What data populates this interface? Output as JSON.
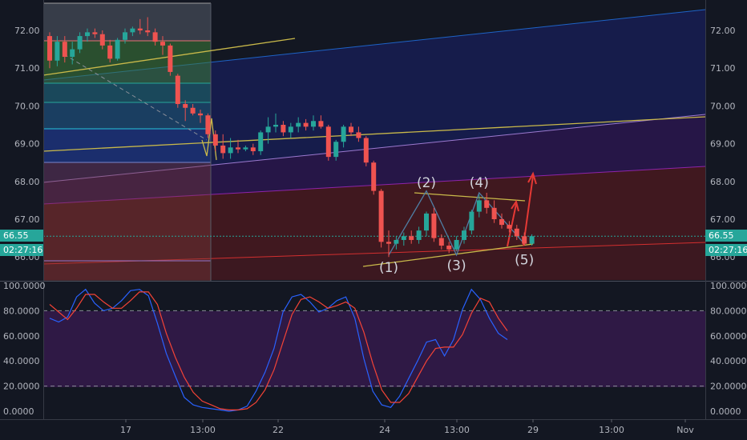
{
  "colors": {
    "background": "#131722",
    "up": "#26a69a",
    "down": "#ef5350",
    "stoch_k": "#2962ff",
    "stoch_d": "#f44336",
    "trendline": "#c9b94a",
    "fib_line": "#22b3a6",
    "projection_arrow": "#e53935",
    "price_tag": "#26a69a"
  },
  "price_tag": {
    "price": "66.55",
    "timer": "02:27:16"
  },
  "chart_data": [
    {
      "type": "candlestick",
      "y_ticks": [
        "72.00",
        "71.00",
        "70.00",
        "69.00",
        "68.00",
        "67.00",
        "66.00"
      ],
      "ylim": [
        65.6,
        72.7
      ],
      "x_ticks": [
        "17",
        "13:00",
        "22",
        "24",
        "13:00",
        "29",
        "13:00",
        "Nov"
      ],
      "current_price": 66.55,
      "candles": [
        [
          71.85,
          71.95,
          71.0,
          71.2
        ],
        [
          71.2,
          71.85,
          71.05,
          71.7
        ],
        [
          71.7,
          71.85,
          71.15,
          71.3
        ],
        [
          71.3,
          71.7,
          71.1,
          71.5
        ],
        [
          71.5,
          71.95,
          71.4,
          71.85
        ],
        [
          71.85,
          72.05,
          71.7,
          71.95
        ],
        [
          71.95,
          72.05,
          71.8,
          71.9
        ],
        [
          71.9,
          72.0,
          71.5,
          71.6
        ],
        [
          71.6,
          71.75,
          71.15,
          71.25
        ],
        [
          71.25,
          71.8,
          71.2,
          71.75
        ],
        [
          71.75,
          72.05,
          71.65,
          71.95
        ],
        [
          71.95,
          72.1,
          71.85,
          72.05
        ],
        [
          72.05,
          72.3,
          71.9,
          72.0
        ],
        [
          72.0,
          72.35,
          71.85,
          71.95
        ],
        [
          71.95,
          72.05,
          71.6,
          71.7
        ],
        [
          71.7,
          71.85,
          71.35,
          71.6
        ],
        [
          71.6,
          71.65,
          70.8,
          70.9
        ],
        [
          70.8,
          70.85,
          69.95,
          70.05
        ],
        [
          70.05,
          70.15,
          69.6,
          69.95
        ],
        [
          69.95,
          70.05,
          69.75,
          69.8
        ],
        [
          69.8,
          69.9,
          69.55,
          69.75
        ],
        [
          69.75,
          69.8,
          69.15,
          69.25
        ],
        [
          69.25,
          69.35,
          68.8,
          68.95
        ],
        [
          68.95,
          69.25,
          68.6,
          68.75
        ],
        [
          68.75,
          69.15,
          68.6,
          68.9
        ],
        [
          68.9,
          69.1,
          68.75,
          68.85
        ],
        [
          68.85,
          68.95,
          68.8,
          68.9
        ],
        [
          68.9,
          69.0,
          68.7,
          68.8
        ],
        [
          68.8,
          69.35,
          68.7,
          69.3
        ],
        [
          69.3,
          69.7,
          69.0,
          69.45
        ],
        [
          69.45,
          69.8,
          69.3,
          69.5
        ],
        [
          69.5,
          69.6,
          69.2,
          69.3
        ],
        [
          69.3,
          69.55,
          69.15,
          69.45
        ],
        [
          69.45,
          69.7,
          69.3,
          69.55
        ],
        [
          69.55,
          69.65,
          69.35,
          69.45
        ],
        [
          69.45,
          69.75,
          69.35,
          69.6
        ],
        [
          69.6,
          69.75,
          69.4,
          69.45
        ],
        [
          69.45,
          69.5,
          68.55,
          68.65
        ],
        [
          68.65,
          69.1,
          68.55,
          69.05
        ],
        [
          69.05,
          69.5,
          68.9,
          69.45
        ],
        [
          69.45,
          69.55,
          69.2,
          69.3
        ],
        [
          69.3,
          69.45,
          69.05,
          69.15
        ],
        [
          69.15,
          69.2,
          68.4,
          68.5
        ],
        [
          68.5,
          68.55,
          67.65,
          67.75
        ],
        [
          67.75,
          67.8,
          66.25,
          66.4
        ],
        [
          66.4,
          66.7,
          66.0,
          66.35
        ],
        [
          66.35,
          66.55,
          66.2,
          66.45
        ],
        [
          66.45,
          66.65,
          66.3,
          66.55
        ],
        [
          66.55,
          66.7,
          66.35,
          66.45
        ],
        [
          66.45,
          66.8,
          66.35,
          66.7
        ],
        [
          66.7,
          67.2,
          66.55,
          67.15
        ],
        [
          67.15,
          67.3,
          66.4,
          66.5
        ],
        [
          66.5,
          66.6,
          66.2,
          66.3
        ],
        [
          66.3,
          66.4,
          66.1,
          66.2
        ],
        [
          66.2,
          66.55,
          66.15,
          66.45
        ],
        [
          66.45,
          66.8,
          66.35,
          66.7
        ],
        [
          66.7,
          67.25,
          66.6,
          67.2
        ],
        [
          67.2,
          67.65,
          67.05,
          67.5
        ],
        [
          67.5,
          67.7,
          67.15,
          67.3
        ],
        [
          67.3,
          67.5,
          66.9,
          67.0
        ],
        [
          67.0,
          67.15,
          66.75,
          66.85
        ],
        [
          66.85,
          66.95,
          66.65,
          66.75
        ],
        [
          66.75,
          66.85,
          66.45,
          66.55
        ],
        [
          66.55,
          66.65,
          66.3,
          66.35
        ],
        [
          66.35,
          66.6,
          66.3,
          66.55
        ]
      ],
      "wave_labels": [
        {
          "text": "(1)",
          "i": 45,
          "price": 65.6
        },
        {
          "text": "(2)",
          "i": 50,
          "price": 67.85
        },
        {
          "text": "(3)",
          "i": 54,
          "price": 65.65
        },
        {
          "text": "(4)",
          "i": 57,
          "price": 67.85
        },
        {
          "text": "(5)",
          "i": 63,
          "price": 65.8
        }
      ]
    },
    {
      "type": "line",
      "y_ticks": [
        "100.0000",
        "80.0000",
        "60.0000",
        "40.0000",
        "20.0000",
        "0.0000"
      ],
      "ylim": [
        0,
        100
      ],
      "levels": [
        80,
        20
      ],
      "series": [
        {
          "key": "k",
          "values": [
            74,
            71,
            75,
            91,
            97,
            86,
            80,
            82,
            88,
            96,
            97,
            92,
            70,
            46,
            28,
            11,
            5,
            3,
            2,
            1,
            0,
            1,
            4,
            16,
            31,
            50,
            79,
            91,
            93,
            87,
            79,
            82,
            88,
            91,
            74,
            42,
            16,
            5,
            3,
            12,
            26,
            40,
            55,
            57,
            44,
            57,
            81,
            97,
            89,
            74,
            62,
            57
          ]
        },
        {
          "key": "d",
          "values": [
            85,
            79,
            73,
            82,
            93,
            93,
            87,
            82,
            82,
            88,
            95,
            95,
            85,
            62,
            43,
            27,
            15,
            8,
            5,
            2,
            1,
            1,
            2,
            7,
            17,
            33,
            55,
            77,
            89,
            91,
            87,
            82,
            84,
            87,
            82,
            63,
            38,
            17,
            7,
            7,
            14,
            27,
            40,
            50,
            51,
            51,
            61,
            78,
            90,
            87,
            74,
            64
          ]
        }
      ]
    }
  ]
}
